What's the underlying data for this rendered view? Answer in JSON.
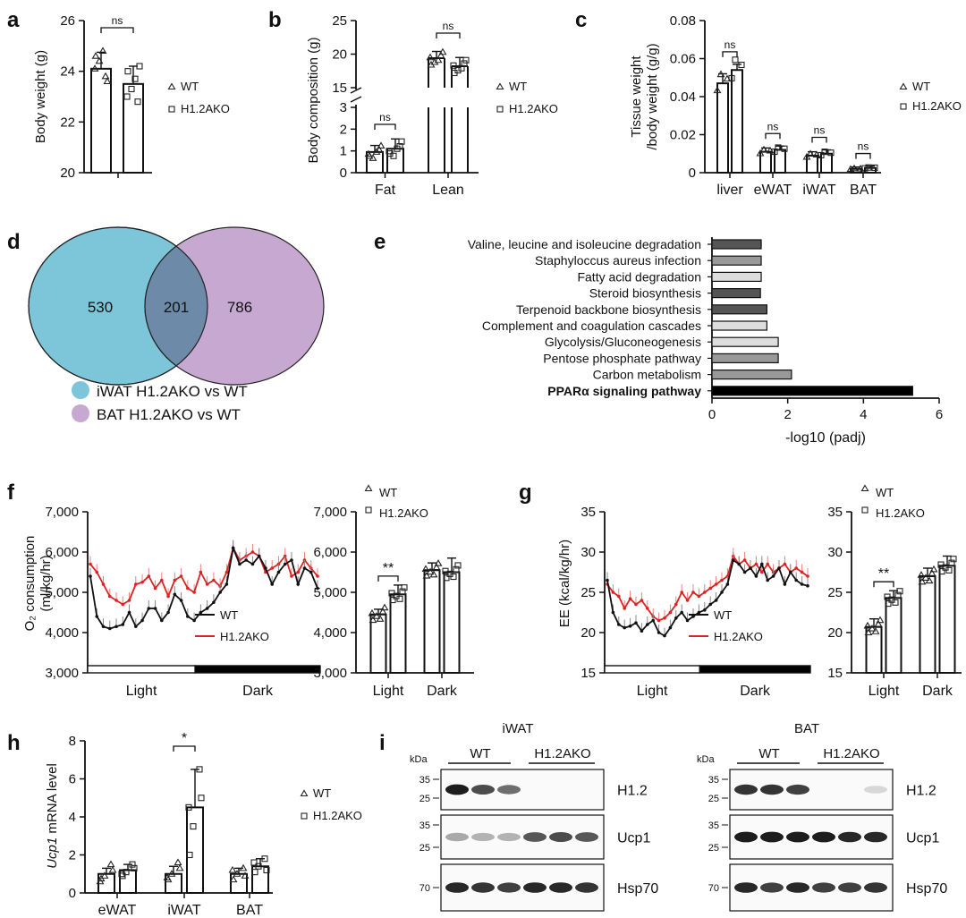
{
  "figure": {
    "colors": {
      "wt_line": "#111111",
      "ko_line": "#dd2222",
      "venn_iwat": "#7dc6d9",
      "venn_bat": "#c7a8d0",
      "venn_overlap": "#6d8aa8",
      "bar_dark": "#555555",
      "bar_mid": "#999999",
      "bar_light": "#dddddd",
      "bar_ppar": "#000000"
    }
  },
  "chart_data": [
    {
      "panel": "a",
      "type": "bar",
      "ylabel": "Body weight (g)",
      "ylim": [
        20,
        26
      ],
      "yticks": [
        "20",
        "22",
        "24",
        "26"
      ],
      "legend": [
        "WT",
        "H1.2AKO"
      ],
      "series": [
        {
          "name": "WT",
          "mean": 24.1,
          "err": 0.65,
          "points": [
            24.6,
            23.8,
            24.4,
            23.6,
            24.1,
            24.8
          ]
        },
        {
          "name": "H1.2AKO",
          "mean": 23.5,
          "err": 0.7,
          "points": [
            24.0,
            22.8,
            23.3,
            24.2,
            23.0,
            23.7
          ]
        }
      ],
      "annotations": [
        "ns"
      ]
    },
    {
      "panel": "b",
      "type": "bar",
      "ylabel": "Body composition (g)",
      "categories": [
        "Fat",
        "Lean"
      ],
      "yticks_low": [
        "0",
        "1",
        "2",
        "3"
      ],
      "yticks_high": [
        "15",
        "20",
        "25"
      ],
      "ylim_low": [
        0,
        3
      ],
      "ylim_high": [
        15,
        25
      ],
      "legend": [
        "WT",
        "H1.2AKO"
      ],
      "series": [
        {
          "name": "WT",
          "values": [
            0.95,
            19.4
          ],
          "err": [
            0.3,
            1.0
          ]
        },
        {
          "name": "H1.2AKO",
          "values": [
            1.1,
            18.2
          ],
          "err": [
            0.45,
            1.3
          ]
        }
      ],
      "annotations": [
        "ns",
        "ns"
      ]
    },
    {
      "panel": "c",
      "type": "bar",
      "ylabel": "Tissue weight",
      "ylabel2": "/body weight (g/g)",
      "categories": [
        "liver",
        "eWAT",
        "iWAT",
        "BAT"
      ],
      "ylim": [
        0,
        0.08
      ],
      "yticks": [
        "0",
        "0.02",
        "0.04",
        "0.06",
        "0.08"
      ],
      "legend": [
        "WT",
        "H1.2AKO"
      ],
      "series": [
        {
          "name": "WT",
          "values": [
            0.047,
            0.011,
            0.009,
            0.002
          ],
          "err": [
            0.005,
            0.002,
            0.002,
            0.001
          ]
        },
        {
          "name": "H1.2AKO",
          "values": [
            0.054,
            0.012,
            0.01,
            0.0025
          ],
          "err": [
            0.003,
            0.002,
            0.002,
            0.001
          ]
        }
      ],
      "annotations": [
        "ns",
        "ns",
        "ns",
        "ns"
      ]
    },
    {
      "panel": "d",
      "type": "venn",
      "sets": [
        {
          "label": "iWAT H1.2AKO vs WT",
          "only": "530"
        },
        {
          "label": "BAT H1.2AKO vs WT",
          "only": "786"
        }
      ],
      "overlap": "201"
    },
    {
      "panel": "e",
      "type": "bar",
      "orientation": "horizontal",
      "xlabel": "-log10 (padj)",
      "xlim": [
        0,
        6
      ],
      "xticks": [
        "0",
        "2",
        "4",
        "6"
      ],
      "categories": [
        "Valine, leucine and isoleucine degradation",
        "Staphyloccus aureus infection",
        "Fatty acid degradation",
        "Steroid biosynthesis",
        "Terpenoid backbone biosynthesis",
        "Complement and coagulation cascades",
        "Glycolysis/Gluconeogenesis",
        "Pentose phosphate pathway",
        "Carbon metabolism",
        "PPARα signaling pathway"
      ],
      "values": [
        1.3,
        1.3,
        1.3,
        1.28,
        1.45,
        1.45,
        1.75,
        1.75,
        2.1,
        5.3
      ],
      "shades": [
        "dark",
        "mid",
        "light",
        "dark",
        "dark",
        "light",
        "light",
        "mid",
        "mid",
        "ppar"
      ]
    },
    {
      "panel": "f",
      "type": "line",
      "ylabel": "O₂ consumption",
      "ylabel2": "(ml/kg/hr)",
      "ylim": [
        3000,
        7000
      ],
      "yticks": [
        "3,000",
        "4,000",
        "5,000",
        "6,000",
        "7,000"
      ],
      "phases": [
        "Light",
        "Dark"
      ],
      "legend": [
        "WT",
        "H1.2AKO"
      ],
      "series": [
        {
          "name": "WT",
          "values": [
            5400,
            4400,
            4150,
            4100,
            4150,
            4200,
            4500,
            4150,
            4300,
            4600,
            4600,
            4300,
            4500,
            4950,
            4800,
            4400,
            4300,
            4500,
            4600,
            4750,
            5000,
            5200,
            6100,
            5700,
            5800,
            5700,
            5900,
            5600,
            5200,
            5500,
            5700,
            5800,
            5200,
            5600,
            5500,
            5100
          ]
        },
        {
          "name": "H1.2AKO",
          "values": [
            5700,
            5500,
            5200,
            4900,
            4800,
            4700,
            4800,
            5200,
            5250,
            5400,
            5100,
            5300,
            4900,
            5300,
            5400,
            5100,
            5000,
            5500,
            5200,
            5300,
            5150,
            5500,
            6100,
            5800,
            5900,
            6000,
            5900,
            5500,
            5600,
            5700,
            5900,
            5400,
            5500,
            5800,
            5600,
            5400
          ]
        }
      ]
    },
    {
      "panel": "f-bar",
      "type": "bar",
      "categories": [
        "Light",
        "Dark"
      ],
      "ylim": [
        3000,
        7000
      ],
      "yticks": [
        "3,000",
        "4,000",
        "5,000",
        "6,000",
        "7,000"
      ],
      "legend": [
        "WT",
        "H1.2AKO"
      ],
      "series": [
        {
          "name": "WT",
          "values": [
            4450,
            5550
          ],
          "err": [
            130,
            180
          ]
        },
        {
          "name": "H1.2AKO",
          "values": [
            4950,
            5500
          ],
          "err": [
            230,
            350
          ]
        }
      ],
      "annotations": [
        "**"
      ]
    },
    {
      "panel": "g",
      "type": "line",
      "ylabel": "EE (kcal/kg/hr)",
      "ylim": [
        15,
        35
      ],
      "yticks": [
        "15",
        "20",
        "25",
        "30",
        "35"
      ],
      "phases": [
        "Light",
        "Dark"
      ],
      "legend": [
        "WT",
        "H1.2AKO"
      ],
      "series": [
        {
          "name": "WT",
          "values": [
            26.5,
            22.5,
            21.0,
            20.6,
            20.8,
            21.2,
            20.2,
            21.0,
            21.5,
            20.0,
            19.6,
            20.6,
            21.8,
            22.5,
            21.5,
            22.0,
            22.5,
            22.8,
            23.5,
            24.0,
            25.0,
            26.0,
            29.0,
            28.5,
            27.5,
            28.0,
            27.0,
            28.5,
            26.5,
            27.0,
            28.0,
            26.0,
            27.5,
            26.5,
            26.0,
            25.8
          ]
        },
        {
          "name": "H1.2AKO",
          "values": [
            26.0,
            25.0,
            24.5,
            23.0,
            24.2,
            23.5,
            24.0,
            23.0,
            22.0,
            21.5,
            21.8,
            22.5,
            23.5,
            25.0,
            24.0,
            25.0,
            24.5,
            25.0,
            25.5,
            26.0,
            26.5,
            27.0,
            29.5,
            28.5,
            29.0,
            28.0,
            28.5,
            27.5,
            28.5,
            27.5,
            28.0,
            28.5,
            27.5,
            28.0,
            27.5,
            27.0
          ]
        }
      ]
    },
    {
      "panel": "g-bar",
      "type": "bar",
      "categories": [
        "Light",
        "Dark"
      ],
      "ylim": [
        15,
        35
      ],
      "yticks": [
        "15",
        "20",
        "25",
        "30",
        "35"
      ],
      "legend": [
        "WT",
        "H1.2AKO"
      ],
      "series": [
        {
          "name": "WT",
          "values": [
            20.7,
            27.0
          ],
          "err": [
            1.0,
            1.0
          ]
        },
        {
          "name": "H1.2AKO",
          "values": [
            24.3,
            28.3
          ],
          "err": [
            0.9,
            1.2
          ]
        }
      ],
      "annotations": [
        "**"
      ]
    },
    {
      "panel": "h",
      "type": "bar",
      "ylabel_italic": "Ucp1",
      "ylabel_rest": " mRNA level",
      "categories": [
        "eWAT",
        "iWAT",
        "BAT"
      ],
      "ylim": [
        0,
        8
      ],
      "yticks": [
        "0",
        "2",
        "4",
        "6",
        "8"
      ],
      "legend": [
        "WT",
        "H1.2AKO"
      ],
      "series": [
        {
          "name": "WT",
          "values": [
            1.0,
            1.0,
            1.0
          ],
          "err": [
            0.3,
            0.4,
            0.3
          ]
        },
        {
          "name": "H1.2AKO",
          "values": [
            1.2,
            4.5,
            1.4
          ],
          "err": [
            0.3,
            2.0,
            0.4
          ]
        }
      ],
      "annotations": [
        "*"
      ]
    },
    {
      "panel": "i",
      "type": "table",
      "unit": "kDa",
      "blots": [
        {
          "tissue": "iWAT",
          "groups": [
            "WT",
            "H1.2AKO"
          ],
          "rows": [
            {
              "protein": "H1.2",
              "markers": [
                "35",
                "25"
              ],
              "intensity": [
                0.95,
                0.75,
                0.6,
                0,
                0,
                0
              ]
            },
            {
              "protein": "Ucp1",
              "markers": [
                "35",
                "25"
              ],
              "intensity": [
                0.35,
                0.3,
                0.3,
                0.7,
                0.75,
                0.7
              ]
            },
            {
              "protein": "Hsp70",
              "markers": [
                "70"
              ],
              "intensity": [
                0.9,
                0.85,
                0.8,
                0.9,
                0.9,
                0.85
              ]
            }
          ]
        },
        {
          "tissue": "BAT",
          "groups": [
            "WT",
            "H1.2AKO"
          ],
          "rows": [
            {
              "protein": "H1.2",
              "markers": [
                "35",
                "25"
              ],
              "intensity": [
                0.85,
                0.85,
                0.8,
                0,
                0,
                0.15
              ]
            },
            {
              "protein": "Ucp1",
              "markers": [
                "35",
                "25"
              ],
              "intensity": [
                0.95,
                0.95,
                0.95,
                0.95,
                0.9,
                0.9
              ]
            },
            {
              "protein": "Hsp70",
              "markers": [
                "70"
              ],
              "intensity": [
                0.9,
                0.8,
                0.9,
                0.8,
                0.8,
                0.85
              ]
            }
          ]
        }
      ]
    }
  ],
  "panel_labels": [
    "a",
    "b",
    "c",
    "d",
    "e",
    "f",
    "g",
    "h",
    "i"
  ]
}
